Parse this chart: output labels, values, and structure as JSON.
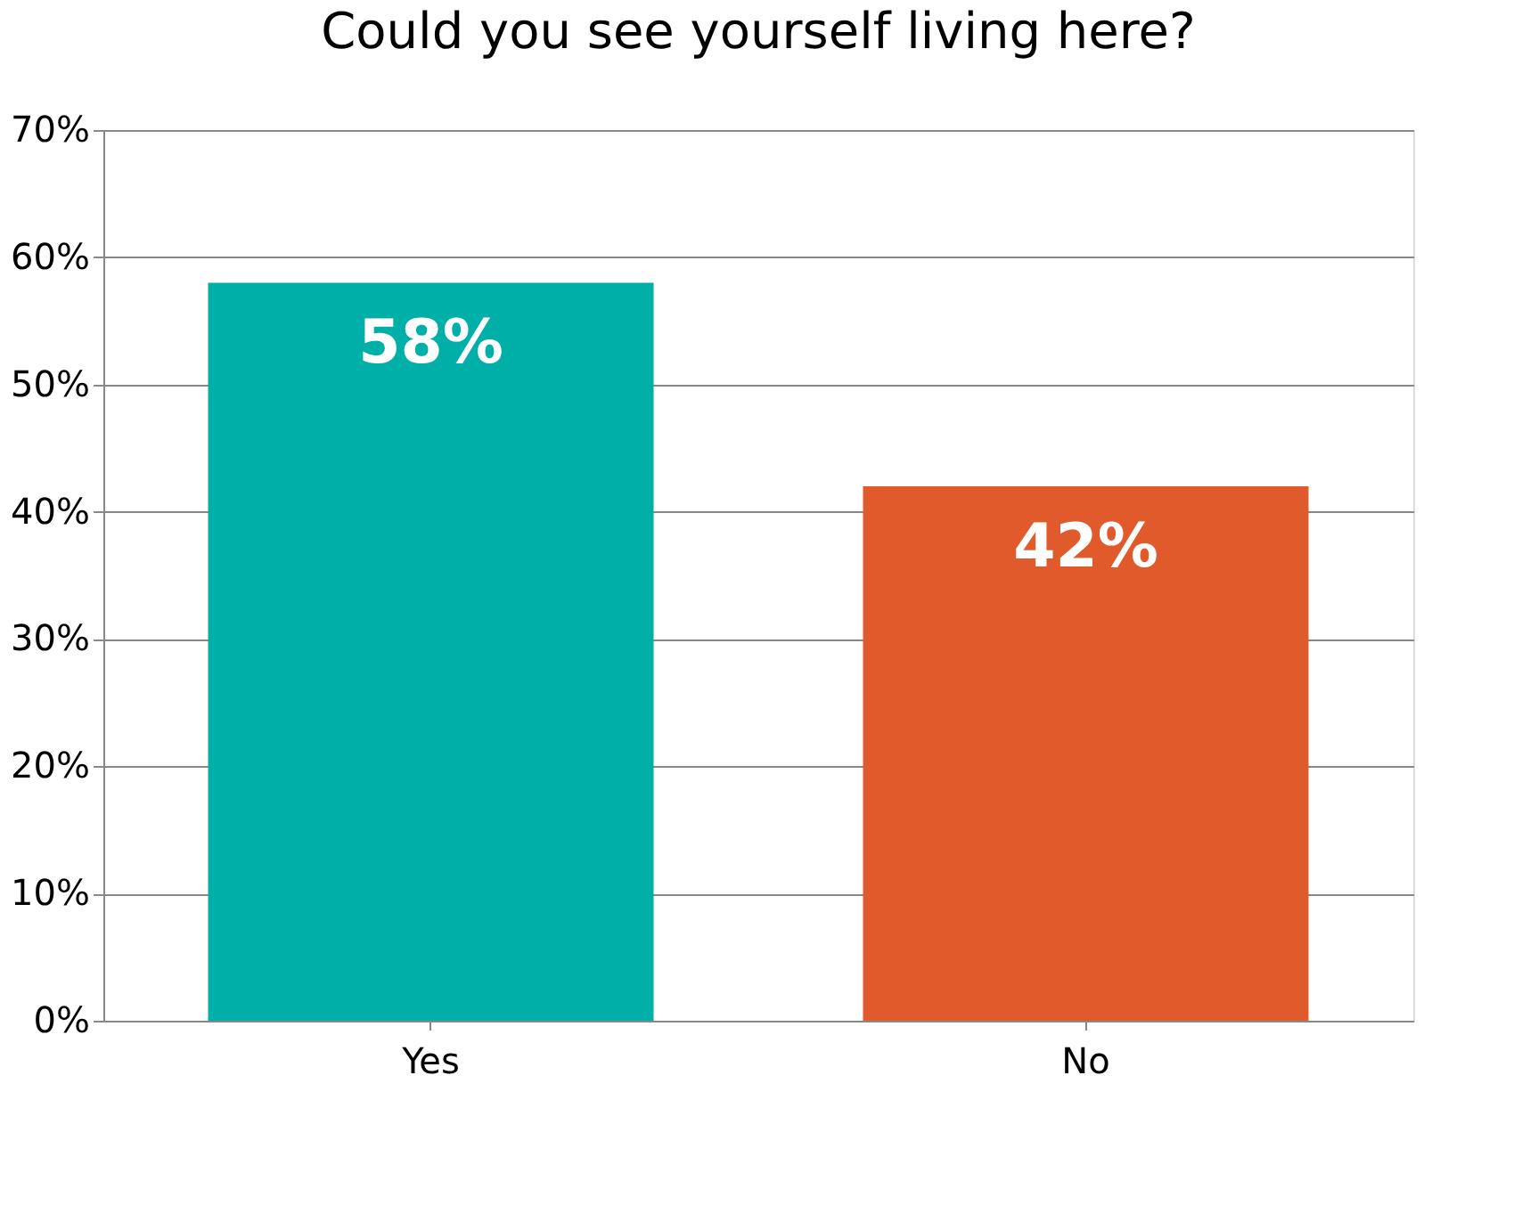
{
  "chart_data": {
    "type": "bar",
    "title": "Could you see yourself living here?",
    "categories": [
      "Yes",
      "No"
    ],
    "values": [
      58,
      42
    ],
    "colors": [
      "#00b0a8",
      "#e05a2b"
    ],
    "value_labels": [
      "58%",
      "42%"
    ],
    "ylim": [
      0,
      70
    ],
    "yticks": [
      {
        "value": 0,
        "label": "0%"
      },
      {
        "value": 10,
        "label": "10%"
      },
      {
        "value": 20,
        "label": "20%"
      },
      {
        "value": 30,
        "label": "30%"
      },
      {
        "value": 40,
        "label": "40%"
      },
      {
        "value": 50,
        "label": "50%"
      },
      {
        "value": 60,
        "label": "60%"
      },
      {
        "value": 70,
        "label": "70%"
      }
    ],
    "grid": "y"
  }
}
